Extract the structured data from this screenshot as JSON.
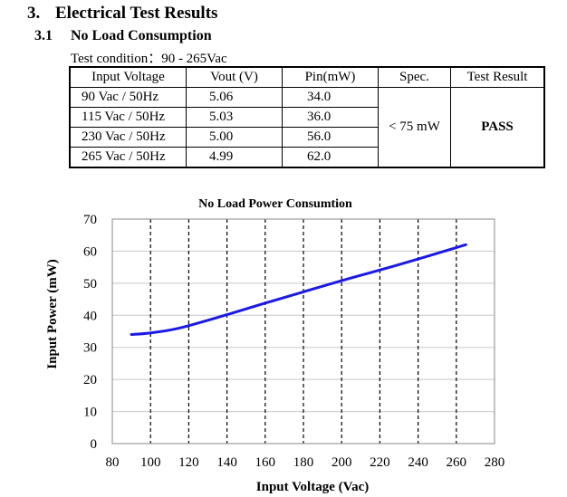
{
  "section": {
    "number": "3.",
    "title": "Electrical Test Results"
  },
  "subsection": {
    "number": "3.1",
    "title": "No Load Consumption"
  },
  "test_condition": "Test condition：90 - 265Vac",
  "table": {
    "headers": [
      "Input Voltage",
      "Vout (V)",
      "Pin(mW)",
      "Spec.",
      "Test Result"
    ],
    "rows": [
      [
        "90 Vac / 50Hz",
        "5.06",
        "34.0"
      ],
      [
        "115 Vac / 50Hz",
        "5.03",
        "36.0"
      ],
      [
        "230 Vac / 50Hz",
        "5.00",
        "56.0"
      ],
      [
        "265 Vac / 50Hz",
        "4.99",
        "62.0"
      ]
    ],
    "spec": "< 75 mW",
    "result": "PASS"
  },
  "chart_data": {
    "type": "line",
    "title": "No Load Power Consumtion",
    "xlabel": "Input Voltage (Vac)",
    "ylabel": "Input Power (mW)",
    "xlim": [
      80,
      280
    ],
    "ylim": [
      0,
      70
    ],
    "x_ticks": [
      "80",
      "100",
      "120",
      "140",
      "160",
      "180",
      "200",
      "220",
      "240",
      "260",
      "280"
    ],
    "y_ticks": [
      "0",
      "10",
      "20",
      "30",
      "40",
      "50",
      "60",
      "70"
    ],
    "grid": "dashed vertical lines at x ticks",
    "line_color": "#1a1ae6",
    "series": [
      {
        "name": "Input Power",
        "x": [
          90,
          100,
          115,
          140,
          160,
          180,
          200,
          230,
          265
        ],
        "y": [
          34.0,
          34.5,
          36.0,
          40.2,
          43.8,
          47.3,
          50.8,
          55.8,
          62.0
        ]
      }
    ]
  }
}
